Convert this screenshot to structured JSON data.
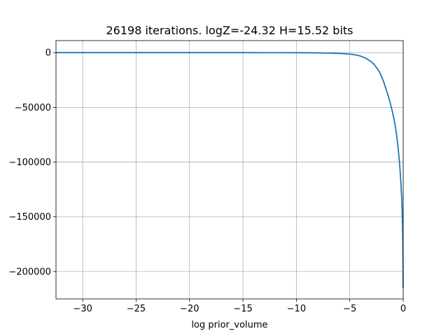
{
  "chart_data": {
    "type": "line",
    "title": "26198 iterations. logZ=-24.32 H=15.52 bits",
    "xlabel": "log prior_volume",
    "ylabel": "",
    "xlim": [
      -32.5,
      0
    ],
    "ylim": [
      -225000,
      11000
    ],
    "grid": true,
    "x_ticks": [
      -30,
      -25,
      -20,
      -15,
      -10,
      -5,
      0
    ],
    "x_tick_labels": [
      "−30",
      "−25",
      "−20",
      "−15",
      "−10",
      "−5",
      "0"
    ],
    "y_ticks": [
      0,
      -50000,
      -100000,
      -150000,
      -200000
    ],
    "y_tick_labels": [
      "0",
      "−50000",
      "−100000",
      "−150000",
      "−200000"
    ],
    "series": [
      {
        "color": "#1f77b4",
        "x": [
          -32.5,
          -30,
          -25,
          -20,
          -15,
          -12,
          -10,
          -9,
          -8,
          -7,
          -6,
          -5,
          -4.5,
          -4,
          -3.5,
          -3,
          -2.7,
          -2.4,
          -2.2,
          -2.0,
          -1.8,
          -1.6,
          -1.4,
          -1.2,
          -1.0,
          -0.8,
          -0.6,
          -0.5,
          -0.4,
          -0.3,
          -0.2,
          -0.15,
          -0.1,
          -0.06,
          -0.03,
          -0.01
        ],
        "y": [
          0,
          0,
          0,
          0,
          -5,
          -30,
          -80,
          -140,
          -240,
          -420,
          -700,
          -1300,
          -2000,
          -3100,
          -5100,
          -8300,
          -11000,
          -15000,
          -18000,
          -22500,
          -27500,
          -33500,
          -39500,
          -46500,
          -54500,
          -63500,
          -76500,
          -85000,
          -94500,
          -106000,
          -122000,
          -131000,
          -143000,
          -158000,
          -178000,
          -215000
        ]
      }
    ]
  }
}
